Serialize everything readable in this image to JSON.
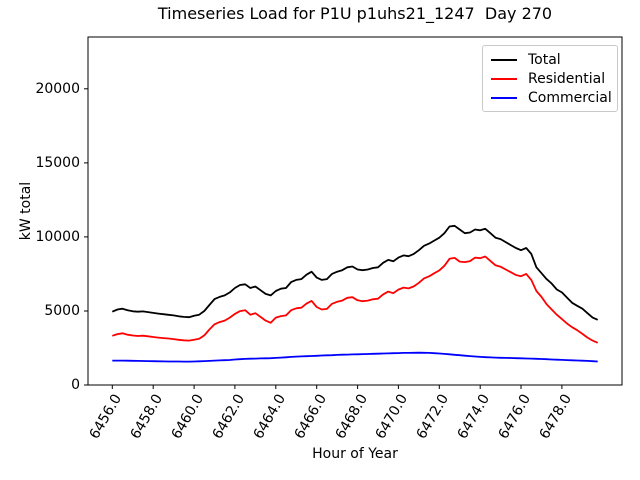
{
  "chart_data": {
    "type": "line",
    "title": "Timeseries Load for P1U p1uhs21_1247  Day 270",
    "xlabel": "Hour of Year",
    "ylabel": "kW total",
    "xlim": [
      6454.81,
      6480.94
    ],
    "ylim": [
      0,
      23500
    ],
    "grid": false,
    "legend_position": "upper right",
    "xticks": {
      "values": [
        6456,
        6458,
        6460,
        6462,
        6464,
        6466,
        6468,
        6470,
        6472,
        6474,
        6476,
        6478
      ],
      "labels": [
        "6456.0",
        "6458.0",
        "6460.0",
        "6462.0",
        "6464.0",
        "6466.0",
        "6468.0",
        "6470.0",
        "6472.0",
        "6474.0",
        "6476.0",
        "6478.0"
      ]
    },
    "yticks": {
      "values": [
        0,
        5000,
        10000,
        15000,
        20000
      ],
      "labels": [
        "0",
        "5000",
        "10000",
        "15000",
        "20000"
      ]
    },
    "x": [
      6456.0,
      6456.25,
      6456.5,
      6456.75,
      6457.0,
      6457.25,
      6457.5,
      6457.75,
      6458.0,
      6458.25,
      6458.5,
      6458.75,
      6459.0,
      6459.25,
      6459.5,
      6459.75,
      6460.0,
      6460.25,
      6460.5,
      6460.75,
      6461.0,
      6461.25,
      6461.5,
      6461.75,
      6462.0,
      6462.25,
      6462.5,
      6462.75,
      6463.0,
      6463.25,
      6463.5,
      6463.75,
      6464.0,
      6464.25,
      6464.5,
      6464.75,
      6465.0,
      6465.25,
      6465.5,
      6465.75,
      6466.0,
      6466.25,
      6466.5,
      6466.75,
      6467.0,
      6467.25,
      6467.5,
      6467.75,
      6468.0,
      6468.25,
      6468.5,
      6468.75,
      6469.0,
      6469.25,
      6469.5,
      6469.75,
      6470.0,
      6470.25,
      6470.5,
      6470.75,
      6471.0,
      6471.25,
      6471.5,
      6471.75,
      6472.0,
      6472.25,
      6472.5,
      6472.75,
      6473.0,
      6473.25,
      6473.5,
      6473.75,
      6474.0,
      6474.25,
      6474.5,
      6474.75,
      6475.0,
      6475.25,
      6475.5,
      6475.75,
      6476.0,
      6476.25,
      6476.5,
      6476.75,
      6477.0,
      6477.25,
      6477.5,
      6477.75,
      6478.0,
      6478.25,
      6478.5,
      6478.75,
      6479.0,
      6479.25,
      6479.5,
      6479.75
    ],
    "series": [
      {
        "name": "Total",
        "color": "#000000",
        "values": [
          4950,
          5100,
          5150,
          5050,
          4980,
          4950,
          4970,
          4920,
          4870,
          4820,
          4780,
          4740,
          4700,
          4640,
          4600,
          4580,
          4680,
          4750,
          5000,
          5400,
          5800,
          5950,
          6050,
          6250,
          6550,
          6750,
          6800,
          6550,
          6650,
          6400,
          6150,
          6050,
          6350,
          6500,
          6550,
          6950,
          7100,
          7150,
          7450,
          7650,
          7250,
          7100,
          7150,
          7500,
          7650,
          7750,
          7950,
          8000,
          7800,
          7750,
          7800,
          7900,
          7950,
          8250,
          8450,
          8350,
          8600,
          8750,
          8700,
          8850,
          9100,
          9400,
          9550,
          9750,
          9950,
          10250,
          10700,
          10750,
          10500,
          10250,
          10300,
          10500,
          10450,
          10550,
          10250,
          9950,
          9850,
          9650,
          9450,
          9250,
          9100,
          9250,
          8850,
          7950,
          7550,
          7150,
          6850,
          6450,
          6250,
          5900,
          5550,
          5350,
          5150,
          4850,
          4550,
          4400
        ]
      },
      {
        "name": "Residential",
        "color": "#ff0000",
        "values": [
          3320,
          3440,
          3490,
          3400,
          3340,
          3310,
          3330,
          3290,
          3240,
          3200,
          3170,
          3140,
          3100,
          3050,
          3020,
          3000,
          3060,
          3120,
          3350,
          3750,
          4100,
          4250,
          4350,
          4550,
          4800,
          4990,
          5050,
          4750,
          4850,
          4600,
          4350,
          4200,
          4550,
          4650,
          4700,
          5050,
          5180,
          5220,
          5500,
          5680,
          5270,
          5100,
          5140,
          5480,
          5620,
          5700,
          5890,
          5930,
          5720,
          5660,
          5700,
          5790,
          5830,
          6120,
          6310,
          6200,
          6440,
          6580,
          6520,
          6660,
          6900,
          7200,
          7340,
          7540,
          7740,
          8050,
          8520,
          8580,
          8330,
          8300,
          8370,
          8600,
          8560,
          8680,
          8380,
          8080,
          7990,
          7800,
          7620,
          7430,
          7350,
          7500,
          7100,
          6350,
          5950,
          5450,
          5100,
          4750,
          4450,
          4150,
          3900,
          3700,
          3450,
          3200,
          3000,
          2850
        ]
      },
      {
        "name": "Commercial",
        "color": "#0000ff",
        "values": [
          1650,
          1650,
          1645,
          1640,
          1635,
          1625,
          1620,
          1615,
          1605,
          1600,
          1595,
          1590,
          1590,
          1585,
          1580,
          1580,
          1590,
          1600,
          1615,
          1625,
          1650,
          1660,
          1675,
          1690,
          1720,
          1745,
          1760,
          1775,
          1785,
          1795,
          1805,
          1810,
          1830,
          1850,
          1870,
          1895,
          1915,
          1930,
          1945,
          1960,
          1975,
          1990,
          2005,
          2015,
          2030,
          2045,
          2055,
          2065,
          2075,
          2085,
          2095,
          2105,
          2115,
          2125,
          2135,
          2145,
          2155,
          2165,
          2170,
          2175,
          2180,
          2175,
          2165,
          2150,
          2130,
          2100,
          2070,
          2040,
          2010,
          1980,
          1950,
          1925,
          1900,
          1880,
          1865,
          1850,
          1840,
          1830,
          1820,
          1810,
          1800,
          1790,
          1780,
          1770,
          1755,
          1740,
          1725,
          1710,
          1695,
          1680,
          1665,
          1655,
          1640,
          1625,
          1610,
          1590
        ]
      }
    ]
  }
}
